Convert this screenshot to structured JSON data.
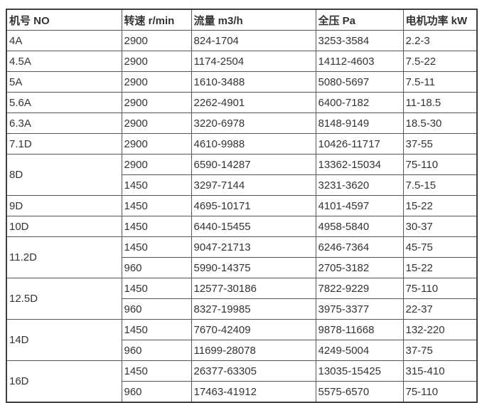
{
  "table": {
    "columns": [
      "机号 NO",
      "转速 r/min",
      "流量 m3/h",
      "全压 Pa",
      "电机功率 kW"
    ],
    "column_keys": [
      "model",
      "rpm",
      "flow",
      "pressure",
      "power"
    ],
    "groups": [
      {
        "model": "4A",
        "variants": [
          [
            "2900",
            "824-1704",
            "3253-3584",
            "2.2-3"
          ]
        ]
      },
      {
        "model": "4.5A",
        "variants": [
          [
            "2900",
            "1174-2504",
            "14112-4603",
            "7.5-22"
          ]
        ]
      },
      {
        "model": "5A",
        "variants": [
          [
            "2900",
            "1610-3488",
            "5080-5697",
            "7.5-11"
          ]
        ]
      },
      {
        "model": "5.6A",
        "variants": [
          [
            "2900",
            "2262-4901",
            "6400-7182",
            "11-18.5"
          ]
        ]
      },
      {
        "model": "6.3A",
        "variants": [
          [
            "2900",
            "3220-6978",
            "8148-9149",
            "18.5-30"
          ]
        ]
      },
      {
        "model": "7.1D",
        "variants": [
          [
            "2900",
            "4610-9988",
            "10426-11717",
            "37-55"
          ]
        ]
      },
      {
        "model": "8D",
        "variants": [
          [
            "2900",
            "6590-14287",
            "13362-15034",
            "75-110"
          ],
          [
            "1450",
            "3297-7144",
            "3231-3620",
            "7.5-15"
          ]
        ]
      },
      {
        "model": "9D",
        "variants": [
          [
            "1450",
            "4695-10171",
            "4101-4597",
            "15-22"
          ]
        ]
      },
      {
        "model": "10D",
        "variants": [
          [
            "1450",
            "6440-15455",
            "4958-5840",
            "30-37"
          ]
        ]
      },
      {
        "model": "11.2D",
        "variants": [
          [
            "1450",
            "9047-21713",
            "6246-7364",
            "45-75"
          ],
          [
            "960",
            "5990-14375",
            "2705-3182",
            "15-22"
          ]
        ]
      },
      {
        "model": "12.5D",
        "variants": [
          [
            "1450",
            "12577-30186",
            "7822-9229",
            "75-110"
          ],
          [
            "960",
            "8327-19985",
            "3975-3377",
            "22-37"
          ]
        ]
      },
      {
        "model": "14D",
        "variants": [
          [
            "1450",
            "7670-42409",
            "9878-11668",
            "132-220"
          ],
          [
            "960",
            "11699-28078",
            "4249-5004",
            "37-75"
          ]
        ]
      },
      {
        "model": "16D",
        "variants": [
          [
            "1450",
            "26377-63305",
            "13035-15425",
            "315-410"
          ],
          [
            "960",
            "17463-41912",
            "5575-6570",
            "75-110"
          ]
        ]
      }
    ],
    "colors": {
      "text": "#333333",
      "border_inner": "#555555",
      "border_outer": "#3f3f3f",
      "background": "#ffffff"
    }
  }
}
